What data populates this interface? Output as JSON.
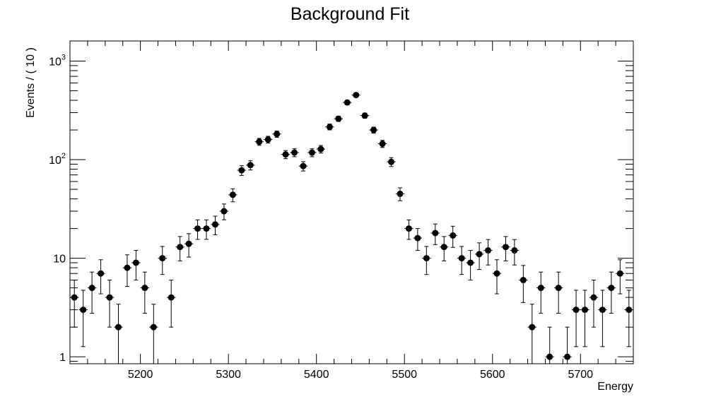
{
  "chart_data": {
    "type": "scatter",
    "title": "Background Fit",
    "xlabel": "Energy",
    "ylabel": "Events / ( 10 )",
    "xlim": [
      5120,
      5760
    ],
    "ylim": [
      0.85,
      1600
    ],
    "yscale": "log",
    "grid": false,
    "legend": "none",
    "bin_width": 10,
    "x_ticks": [
      5200,
      5300,
      5400,
      5500,
      5600,
      5700
    ],
    "x_tick_labels": [
      "5200",
      "5300",
      "5400",
      "5500",
      "5600",
      "5700"
    ],
    "y_ticks": [
      1,
      10,
      100,
      1000
    ],
    "y_tick_labels": [
      {
        "base": "1",
        "exp": ""
      },
      {
        "base": "10",
        "exp": ""
      },
      {
        "base": "10",
        "exp": "2"
      },
      {
        "base": "10",
        "exp": "3"
      }
    ],
    "series": [
      {
        "x": [
          5125,
          5135,
          5145,
          5155,
          5165,
          5175,
          5185,
          5195,
          5205,
          5215,
          5225,
          5235,
          5245,
          5255,
          5265,
          5275,
          5285,
          5295,
          5305,
          5315,
          5325,
          5335,
          5345,
          5355,
          5365,
          5375,
          5385,
          5395,
          5405,
          5415,
          5425,
          5435,
          5445,
          5455,
          5465,
          5475,
          5485,
          5495,
          5505,
          5515,
          5525,
          5535,
          5545,
          5555,
          5565,
          5575,
          5585,
          5595,
          5605,
          5615,
          5625,
          5635,
          5645,
          5655,
          5665,
          5675,
          5685,
          5695,
          5705,
          5715,
          5725,
          5735,
          5745,
          5755
        ],
        "y": [
          4,
          3,
          5,
          7,
          4,
          2,
          8,
          9,
          5,
          2,
          10,
          4,
          13,
          14,
          20,
          20,
          22,
          30,
          44,
          78,
          88,
          152,
          160,
          182,
          113,
          118,
          86,
          118,
          128,
          215,
          260,
          380,
          452,
          280,
          200,
          145,
          95,
          45,
          20,
          16,
          10,
          18,
          13,
          17,
          10,
          9,
          11,
          12,
          7,
          13,
          12,
          6,
          2,
          5,
          1,
          5,
          1,
          3,
          3,
          4,
          3,
          5,
          7,
          3
        ]
      }
    ],
    "colors": {
      "marker": "#000000",
      "frame": "#000000",
      "background": "#ffffff"
    }
  }
}
